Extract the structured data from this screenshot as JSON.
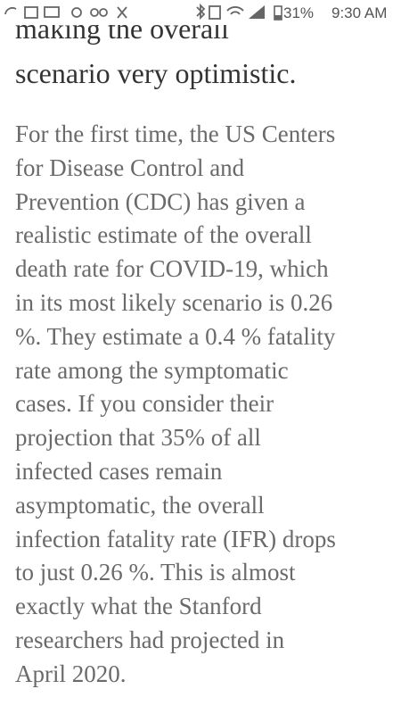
{
  "status_bar": {
    "battery": "31%",
    "time": "9:30 AM"
  },
  "article": {
    "heading_lines": [
      "making the overall",
      "scenario very optimistic."
    ],
    "paragraph_lines": [
      "For the first time, the US Centers",
      "for Disease Control and",
      "Prevention (CDC) has given a",
      "realistic estimate of the overall",
      "death rate for COVID-19, which",
      "in its most likely scenario is 0.26",
      "%. They estimate a 0.4 % fatality",
      "rate among the symptomatic",
      "cases. If you consider their",
      "projection that 35% of all",
      "infected cases remain",
      "asymptomatic, the overall",
      "infection fatality rate (IFR) drops",
      "to just 0.26 %. This is almost",
      "exactly what the Stanford",
      "researchers had projected in",
      "April 2020."
    ]
  }
}
